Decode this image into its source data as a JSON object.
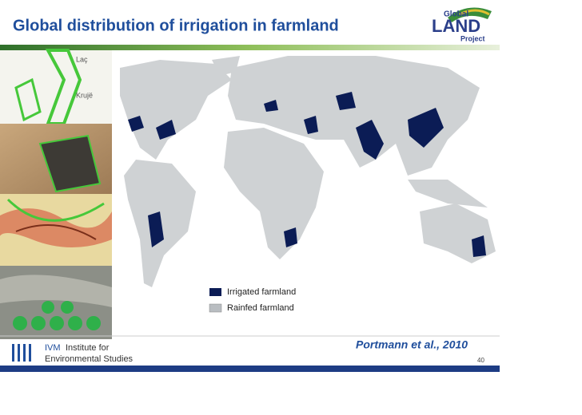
{
  "header": {
    "title": "Global distribution of irrigation in farmland",
    "logo": {
      "top": "Global",
      "main": "LAND",
      "bottom": "Project"
    }
  },
  "legend": [
    {
      "label": "Irrigated farmland",
      "color": "#0b1c55"
    },
    {
      "label": "Rainfed farmland",
      "color": "#b9bdc1"
    }
  ],
  "citation": "Portmann et al., 2010",
  "footer": {
    "ivm": "IVM",
    "line1": "Institute for",
    "line2": "Environmental Studies",
    "page": "40"
  }
}
